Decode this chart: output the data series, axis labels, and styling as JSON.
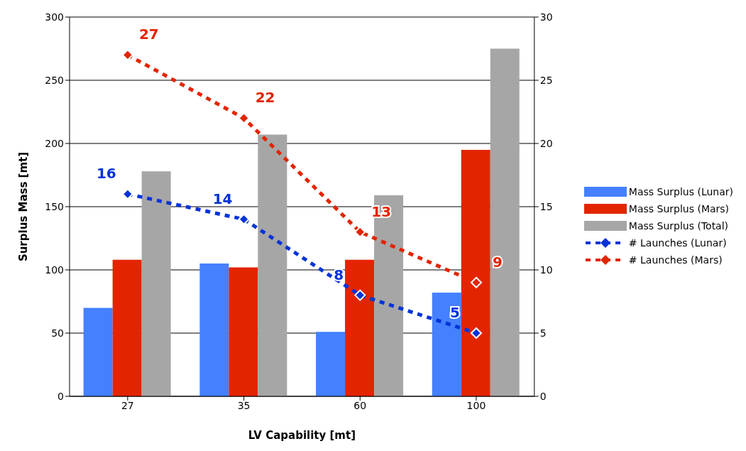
{
  "chart_data": {
    "type": "bar",
    "xlabel": "LV Capability [mt]",
    "ylabel": "Surplus Mass [mt]",
    "categories": [
      "27",
      "35",
      "60",
      "100"
    ],
    "series": [
      {
        "name": "Mass Surplus (Lunar)",
        "color": "#4580ff",
        "values": [
          70,
          105,
          51,
          82
        ]
      },
      {
        "name": "Mass Surplus (Mars)",
        "color": "#e32400",
        "values": [
          108,
          102,
          108,
          195
        ]
      },
      {
        "name": "Mass Surplus (Total)",
        "color": "#a6a6a6",
        "values": [
          178,
          207,
          159,
          275
        ]
      },
      {
        "name": "# Launches (Lunar)",
        "type": "line",
        "axis": "y2",
        "color": "#0433d8",
        "values": [
          16,
          14,
          8,
          5
        ],
        "value_labels": [
          "16",
          "14",
          "8",
          "5"
        ]
      },
      {
        "name": "# Launches (Mars)",
        "type": "line",
        "axis": "y2",
        "color": "#e32400",
        "values": [
          27,
          22,
          13,
          9
        ],
        "value_labels": [
          "27",
          "22",
          "13",
          "9"
        ]
      }
    ],
    "ylim": [
      0,
      300
    ],
    "yticks": [
      0,
      50,
      100,
      150,
      200,
      250,
      300
    ],
    "y2lim": [
      0,
      30
    ],
    "y2ticks": [
      0,
      5,
      10,
      15,
      20,
      25,
      30
    ],
    "grid": "y",
    "legend": "right",
    "marker": "diamond",
    "line_style": "dashed"
  }
}
